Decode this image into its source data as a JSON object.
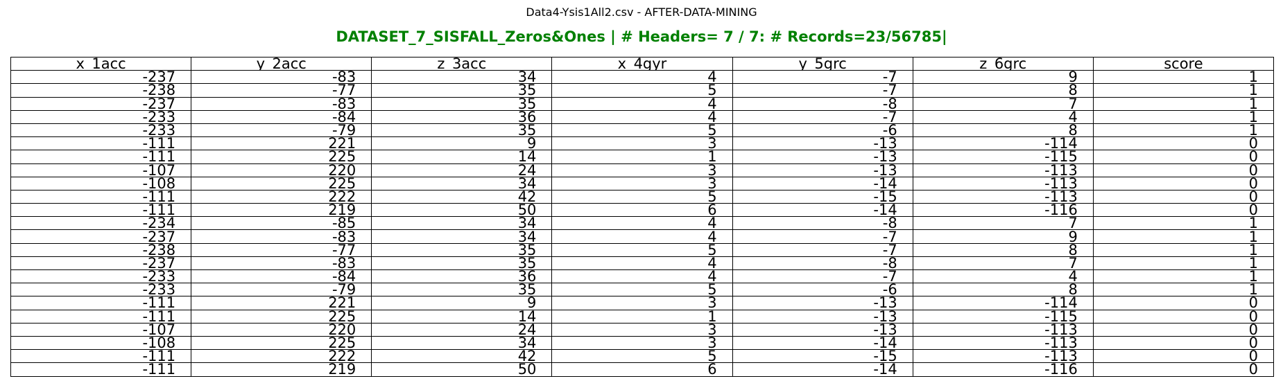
{
  "file_title": "Data4-Ysis1All2.csv - AFTER-DATA-MINING",
  "main_title": "DATASET_7_SISFALL_Zeros&Ones | # Headers= 7 / 7: # Records=23/56785|",
  "colors": {
    "main_title": "#008000",
    "border": "#000000",
    "text": "#000000"
  },
  "chart_data": {
    "type": "table",
    "title": "DATASET_7_SISFALL_Zeros&Ones | # Headers= 7 / 7: # Records=23/56785|",
    "columns": [
      "x_1acc",
      "y_2acc",
      "z_3acc",
      "x_4gyr",
      "y_5grc",
      "z_6grc",
      "score"
    ],
    "rows": [
      [
        "-237",
        "-83",
        "34",
        "4",
        "-7",
        "9",
        "1"
      ],
      [
        "-238",
        "-77",
        "35",
        "5",
        "-7",
        "8",
        "1"
      ],
      [
        "-237",
        "-83",
        "35",
        "4",
        "-8",
        "7",
        "1"
      ],
      [
        "-233",
        "-84",
        "36",
        "4",
        "-7",
        "4",
        "1"
      ],
      [
        "-233",
        "-79",
        "35",
        "5",
        "-6",
        "8",
        "1"
      ],
      [
        "-111",
        "221",
        "9",
        "3",
        "-13",
        "-114",
        "0"
      ],
      [
        "-111",
        "225",
        "14",
        "1",
        "-13",
        "-115",
        "0"
      ],
      [
        "-107",
        "220",
        "24",
        "3",
        "-13",
        "-113",
        "0"
      ],
      [
        "-108",
        "225",
        "34",
        "3",
        "-14",
        "-113",
        "0"
      ],
      [
        "-111",
        "222",
        "42",
        "5",
        "-15",
        "-113",
        "0"
      ],
      [
        "-111",
        "219",
        "50",
        "6",
        "-14",
        "-116",
        "0"
      ],
      [
        "-234",
        "-85",
        "34",
        "4",
        "-8",
        "7",
        "1"
      ],
      [
        "-237",
        "-83",
        "34",
        "4",
        "-7",
        "9",
        "1"
      ],
      [
        "-238",
        "-77",
        "35",
        "5",
        "-7",
        "8",
        "1"
      ],
      [
        "-237",
        "-83",
        "35",
        "4",
        "-8",
        "7",
        "1"
      ],
      [
        "-233",
        "-84",
        "36",
        "4",
        "-7",
        "4",
        "1"
      ],
      [
        "-233",
        "-79",
        "35",
        "5",
        "-6",
        "8",
        "1"
      ],
      [
        "-111",
        "221",
        "9",
        "3",
        "-13",
        "-114",
        "0"
      ],
      [
        "-111",
        "225",
        "14",
        "1",
        "-13",
        "-115",
        "0"
      ],
      [
        "-107",
        "220",
        "24",
        "3",
        "-13",
        "-113",
        "0"
      ],
      [
        "-108",
        "225",
        "34",
        "3",
        "-14",
        "-113",
        "0"
      ],
      [
        "-111",
        "222",
        "42",
        "5",
        "-15",
        "-113",
        "0"
      ],
      [
        "-111",
        "219",
        "50",
        "6",
        "-14",
        "-116",
        "0"
      ]
    ]
  }
}
